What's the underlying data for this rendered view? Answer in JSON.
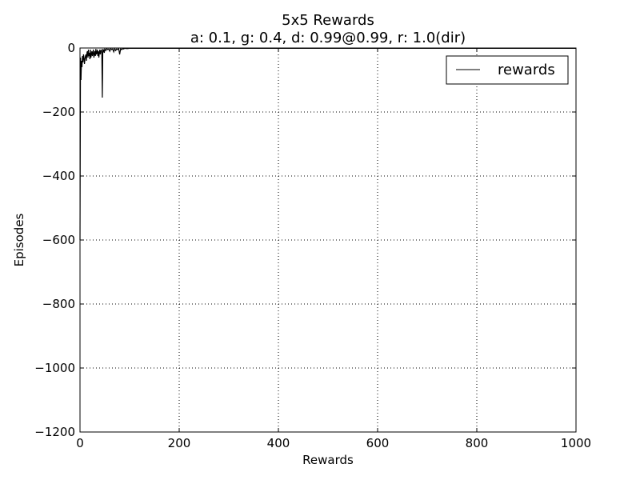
{
  "chart_data": {
    "type": "line",
    "title": "5x5 Rewards",
    "subtitle": "a: 0.1, g: 0.4, d: 0.99@0.99, r: 1.0(dir)",
    "xlabel": "Rewards",
    "ylabel": "Episodes",
    "xlim": [
      0,
      1000
    ],
    "ylim": [
      -1200,
      0
    ],
    "xticks": [
      0,
      200,
      400,
      600,
      800,
      1000
    ],
    "yticks": [
      0,
      -200,
      -400,
      -600,
      -800,
      -1000,
      -1200
    ],
    "xtick_labels": [
      "0",
      "200",
      "400",
      "600",
      "800",
      "1000"
    ],
    "ytick_labels": [
      "0",
      "−200",
      "−400",
      "−600",
      "−800",
      "−1000",
      "−1200"
    ],
    "grid": true,
    "legend_position": "top-right",
    "line_color": "#000000",
    "series": [
      {
        "name": "rewards",
        "x": [
          0,
          1,
          2,
          3,
          4,
          5,
          6,
          7,
          8,
          9,
          10,
          11,
          12,
          13,
          14,
          15,
          16,
          17,
          18,
          19,
          20,
          21,
          22,
          23,
          24,
          25,
          26,
          27,
          28,
          29,
          30,
          31,
          32,
          33,
          34,
          35,
          36,
          37,
          38,
          39,
          40,
          41,
          42,
          43,
          44,
          45,
          46,
          47,
          48,
          49,
          50,
          52,
          54,
          56,
          58,
          60,
          62,
          64,
          66,
          68,
          70,
          72,
          74,
          76,
          78,
          80,
          82,
          84,
          86,
          88,
          90,
          95,
          100,
          150,
          200,
          300,
          400,
          500,
          600,
          700,
          800,
          900,
          1000
        ],
        "values": [
          -600,
          -30,
          -100,
          -40,
          -60,
          -25,
          -45,
          -20,
          -30,
          -50,
          -35,
          -25,
          -20,
          -40,
          -15,
          -10,
          -30,
          -5,
          -25,
          -15,
          -35,
          -5,
          -30,
          -20,
          -10,
          -25,
          -15,
          -5,
          -30,
          -20,
          -10,
          -25,
          -3,
          -20,
          -15,
          -5,
          -25,
          -10,
          -30,
          -15,
          -5,
          -20,
          -10,
          -5,
          -15,
          -155,
          -3,
          -10,
          -5,
          -15,
          -3,
          -8,
          -2,
          -5,
          -3,
          -10,
          -2,
          -5,
          -3,
          -12,
          -2,
          -8,
          -3,
          -5,
          -2,
          -20,
          -2,
          -5,
          -2,
          -3,
          -1,
          -2,
          -1,
          -1,
          -1,
          -1,
          -1,
          -1,
          -1,
          -1,
          -1,
          -1,
          -1
        ]
      }
    ]
  }
}
